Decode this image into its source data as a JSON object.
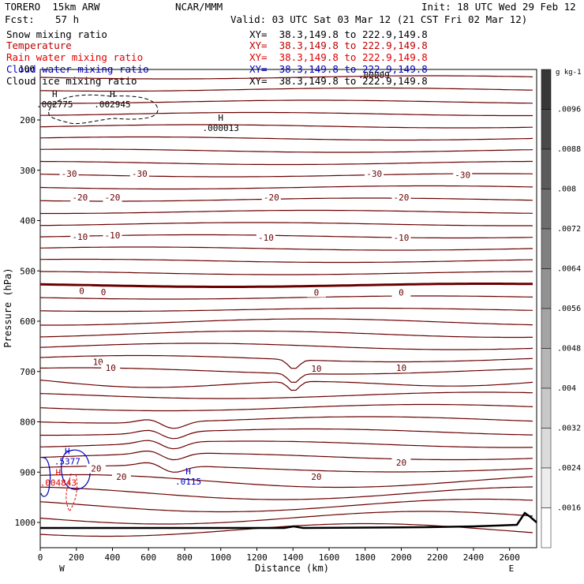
{
  "header": {
    "model": "TORERO  15km ARW",
    "center": "NCAR/MMM",
    "init": "Init: 18 UTC Wed 29 Feb 12",
    "fcst_label": "Fcst:",
    "fcst_value": "57 h",
    "valid": "Valid: 03 UTC Sat 03 Mar 12 (21 CST Fri 02 Mar 12)"
  },
  "fields": [
    {
      "name": "Snow mixing ratio",
      "xy": "XY=  38.3,149.8 to 222.9,149.8",
      "color": "#000000"
    },
    {
      "name": "Temperature",
      "xy": "XY=  38.3,149.8 to 222.9,149.8",
      "color": "#c00000"
    },
    {
      "name": "Rain water mixing ratio",
      "xy": "XY=  38.3,149.8 to 222.9,149.8",
      "color": "#e00000"
    },
    {
      "name": "Cloud water mixing ratio",
      "xy": "XY=  38.3,149.8 to 222.9,149.8",
      "color": "#0000c0"
    },
    {
      "name": "Cloud ice mixing ratio",
      "xy": "XY=  38.3,149.8 to 222.9,149.8",
      "color": "#000000"
    }
  ],
  "overlap_label": "100",
  "overlap_label2": ".00009",
  "chart_data": {
    "type": "contour cross-section",
    "xlabel": "Distance (km)",
    "ylabel": "Pressure (hPa)",
    "x_ticks": [
      "0",
      "200",
      "400",
      "600",
      "800",
      "1000",
      "1200",
      "1400",
      "1600",
      "1800",
      "2000",
      "2200",
      "2400",
      "2600"
    ],
    "y_ticks": [
      "200",
      "300",
      "400",
      "500",
      "600",
      "700",
      "800",
      "900",
      "1000"
    ],
    "x_end_labels": {
      "left": "W",
      "right": "E"
    },
    "colorbar_unit": "g kg-1",
    "colorbar_ticks": [
      ".0096",
      ".0088",
      ".008",
      ".0072",
      ".0064",
      ".0056",
      ".0048",
      ".004",
      ".0032",
      ".0024",
      ".0016"
    ],
    "temperature_contour_labels": [
      {
        "text": "-30",
        "x": 160,
        "p": 310
      },
      {
        "text": "-30",
        "x": 550,
        "p": 310
      },
      {
        "text": "-30",
        "x": 1850,
        "p": 310
      },
      {
        "text": "-30",
        "x": 2340,
        "p": 312
      },
      {
        "text": "-20",
        "x": 220,
        "p": 357
      },
      {
        "text": "-20",
        "x": 400,
        "p": 357
      },
      {
        "text": "-20",
        "x": 1280,
        "p": 357
      },
      {
        "text": "-20",
        "x": 2000,
        "p": 357
      },
      {
        "text": "-10",
        "x": 220,
        "p": 435
      },
      {
        "text": "-10",
        "x": 400,
        "p": 432
      },
      {
        "text": "-10",
        "x": 1250,
        "p": 437
      },
      {
        "text": "-10",
        "x": 2000,
        "p": 437
      },
      {
        "text": "0",
        "x": 230,
        "p": 543
      },
      {
        "text": "0",
        "x": 350,
        "p": 545
      },
      {
        "text": "0",
        "x": 1530,
        "p": 546
      },
      {
        "text": "0",
        "x": 2000,
        "p": 546
      },
      {
        "text": "10",
        "x": 320,
        "p": 684
      },
      {
        "text": "10",
        "x": 390,
        "p": 696
      },
      {
        "text": "10",
        "x": 1530,
        "p": 697
      },
      {
        "text": "10",
        "x": 2000,
        "p": 696
      },
      {
        "text": "20",
        "x": 310,
        "p": 896
      },
      {
        "text": "20",
        "x": 450,
        "p": 912
      },
      {
        "text": "20",
        "x": 1530,
        "p": 912
      },
      {
        "text": "20",
        "x": 2000,
        "p": 884
      }
    ],
    "maxima_labels": [
      {
        "field": "Snow mixing ratio",
        "marker": "H",
        "value": ".002775",
        "x": 80,
        "p": 170
      },
      {
        "field": "Snow mixing ratio",
        "marker": "H",
        "value": ".002945",
        "x": 400,
        "p": 170
      },
      {
        "field": "Cloud ice mixing ratio",
        "marker": "H",
        "value": ".000013",
        "x": 1000,
        "p": 217
      },
      {
        "field": "Cloud water mixing ratio",
        "marker": "H",
        "value": ".5377",
        "x": 150,
        "p": 880
      },
      {
        "field": "Rain water mixing ratio",
        "marker": "H",
        "value": ".004843",
        "x": 100,
        "p": 922
      },
      {
        "field": "Cloud water mixing ratio",
        "marker": "H",
        "value": ".0115",
        "x": 820,
        "p": 920
      }
    ]
  }
}
